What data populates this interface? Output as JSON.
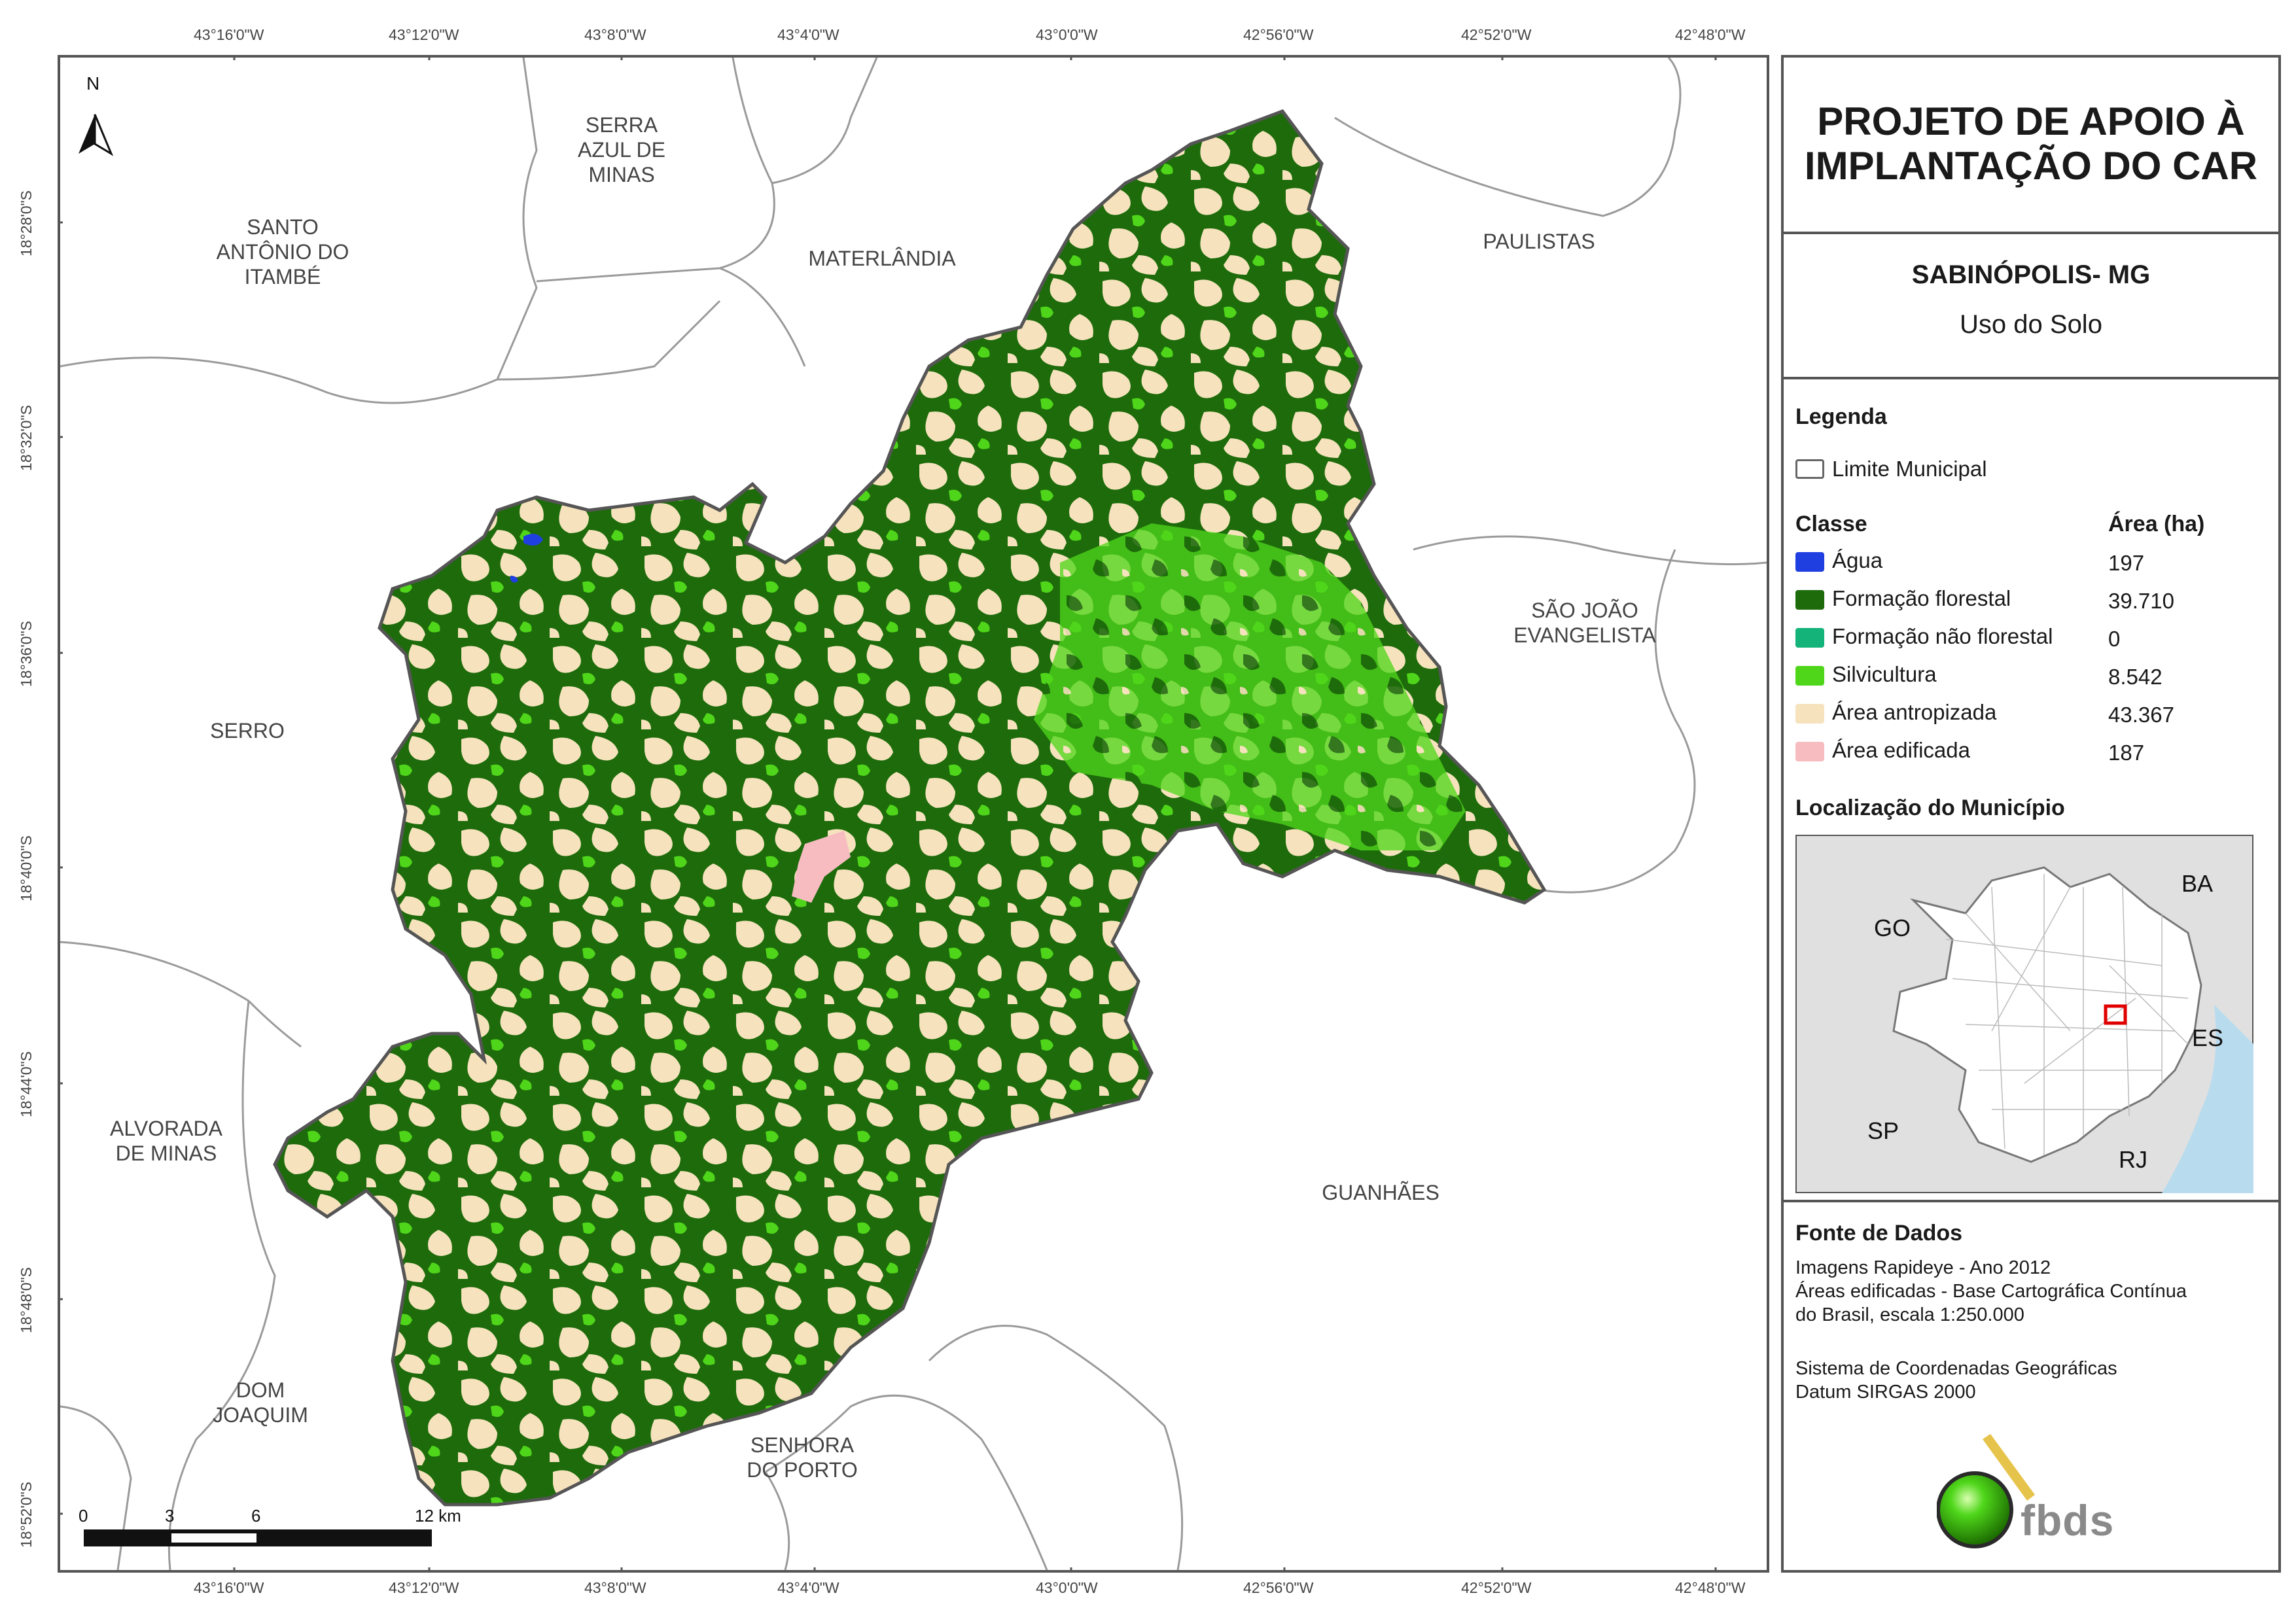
{
  "map": {
    "lon_ticks": [
      "43°16'0\"W",
      "43°12'0\"W",
      "43°8'0\"W",
      "43°4'0\"W",
      "43°0'0\"W",
      "42°56'0\"W",
      "42°52'0\"W",
      "42°48'0\"W"
    ],
    "lat_ticks": [
      "18°28'0\"S",
      "18°32'0\"S",
      "18°36'0\"S",
      "18°40'0\"S",
      "18°44'0\"S",
      "18°48'0\"S",
      "18°52'0\"S"
    ],
    "north_label": "N",
    "municipalities": [
      {
        "id": "serra-azul",
        "lines": [
          "SERRA",
          "AZUL DE",
          "MINAS"
        ]
      },
      {
        "id": "santo-antonio",
        "lines": [
          "SANTO",
          "ANTÔNIO DO",
          "ITAMBÉ"
        ]
      },
      {
        "id": "materlandia",
        "lines": [
          "MATERLÂNDIA"
        ]
      },
      {
        "id": "paulistas",
        "lines": [
          "PAULISTAS"
        ]
      },
      {
        "id": "sao-joao",
        "lines": [
          "SÃO JOÃO",
          "EVANGELISTA"
        ]
      },
      {
        "id": "serro",
        "lines": [
          "SERRO"
        ]
      },
      {
        "id": "alvorada",
        "lines": [
          "ALVORADA",
          "DE MINAS"
        ]
      },
      {
        "id": "guanhaes",
        "lines": [
          "GUANHÃES"
        ]
      },
      {
        "id": "dom-joaquim",
        "lines": [
          "DOM",
          "JOAQUIM"
        ]
      },
      {
        "id": "senhora-porto",
        "lines": [
          "SENHORA",
          "DO PORTO"
        ]
      }
    ],
    "scale_labels": [
      "0",
      "3",
      "6",
      "12 km"
    ]
  },
  "panel": {
    "title_line1": "PROJETO DE APOIO À",
    "title_line2": "IMPLANTAÇÃO DO CAR",
    "municipality": "SABINÓPOLIS- MG",
    "theme": "Uso do Solo",
    "legend_heading": "Legenda",
    "limit_label": "Limite Municipal",
    "class_heading": "Classe",
    "area_heading": "Área (ha)",
    "classes": [
      {
        "label": "Água",
        "area": "197",
        "color": "#1f3fe0"
      },
      {
        "label": "Formação florestal",
        "area": "39.710",
        "color": "#1e6b0c"
      },
      {
        "label": "Formação não florestal",
        "area": "0",
        "color": "#13b37a"
      },
      {
        "label": "Silvicultura",
        "area": "8.542",
        "color": "#4fd61a"
      },
      {
        "label": "Área antropizada",
        "area": "43.367",
        "color": "#f6e3bd"
      },
      {
        "label": "Área edificada",
        "area": "187",
        "color": "#f7bcc0"
      }
    ],
    "location_heading": "Localização do Município",
    "location_states": [
      "GO",
      "BA",
      "ES",
      "SP",
      "RJ"
    ],
    "sources_heading": "Fonte de Dados",
    "sources": [
      "Imagens Rapideye - Ano 2012",
      "Áreas edificadas - Base Cartográfica Contínua",
      "do Brasil, escala 1:250.000",
      "",
      "Sistema de Coordenadas Geográficas",
      "Datum SIRGAS 2000"
    ],
    "logo_text": "fbds"
  }
}
